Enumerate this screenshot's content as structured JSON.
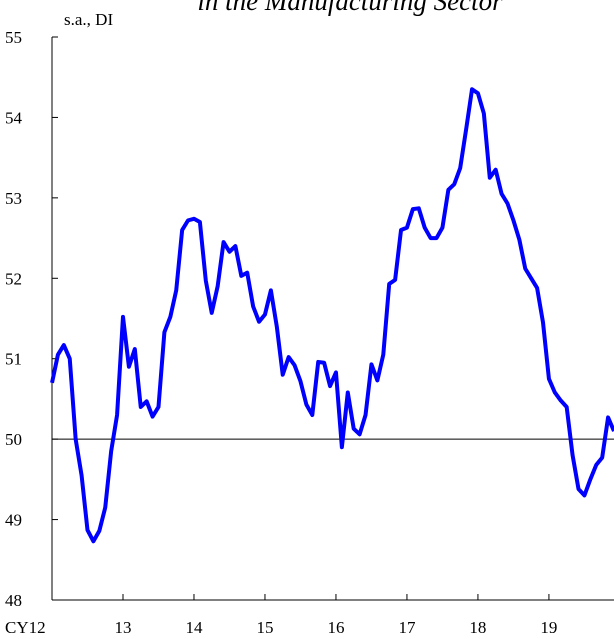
{
  "chart_data": {
    "type": "line",
    "title": "in the Manufacturing Sector",
    "y_label": "s.a., DI",
    "categories": [
      "CY12",
      null,
      null,
      null,
      null,
      null,
      null,
      null,
      null,
      null,
      null,
      null,
      "13",
      null,
      null,
      null,
      null,
      null,
      null,
      null,
      null,
      null,
      null,
      null,
      "14",
      null,
      null,
      null,
      null,
      null,
      null,
      null,
      null,
      null,
      null,
      null,
      "15",
      null,
      null,
      null,
      null,
      null,
      null,
      null,
      null,
      null,
      null,
      null,
      "16",
      null,
      null,
      null,
      null,
      null,
      null,
      null,
      null,
      null,
      null,
      null,
      "17",
      null,
      null,
      null,
      null,
      null,
      null,
      null,
      null,
      null,
      null,
      null,
      "18",
      null,
      null,
      null,
      null,
      null,
      null,
      null,
      null,
      null,
      null,
      null,
      "19",
      null,
      null,
      null,
      null,
      null,
      null,
      null,
      null,
      null,
      null,
      null
    ],
    "series": [
      {
        "color": "#0000ff",
        "values": [
          50.7,
          51.05,
          51.17,
          51.0,
          50.0,
          49.55,
          48.87,
          48.73,
          48.86,
          49.15,
          49.85,
          50.3,
          51.52,
          50.9,
          51.12,
          50.4,
          50.47,
          50.28,
          50.4,
          51.33,
          51.52,
          51.85,
          52.6,
          52.72,
          52.74,
          52.7,
          51.97,
          51.57,
          51.9,
          52.45,
          52.33,
          52.4,
          52.03,
          52.07,
          51.65,
          51.46,
          51.55,
          51.85,
          51.4,
          50.8,
          51.02,
          50.92,
          50.72,
          50.43,
          50.3,
          50.96,
          50.95,
          50.66,
          50.83,
          49.9,
          50.58,
          50.13,
          50.06,
          50.3,
          50.93,
          50.73,
          51.05,
          51.93,
          51.98,
          52.6,
          52.63,
          52.86,
          52.87,
          52.63,
          52.5,
          52.5,
          52.63,
          53.1,
          53.17,
          53.37,
          53.85,
          54.35,
          54.3,
          54.05,
          53.25,
          53.35,
          53.05,
          52.93,
          52.72,
          52.48,
          52.12,
          52.0,
          51.88,
          51.45,
          50.75,
          50.58,
          50.48,
          50.4,
          49.8,
          49.38,
          49.3,
          49.5,
          49.68,
          49.77,
          50.27,
          50.1
        ]
      }
    ],
    "ylim": [
      48,
      55
    ],
    "yticks": [
      48,
      49,
      50,
      51,
      52,
      53,
      54,
      55
    ],
    "reference_line": 50,
    "reference_color": "#000000",
    "grid": false
  }
}
